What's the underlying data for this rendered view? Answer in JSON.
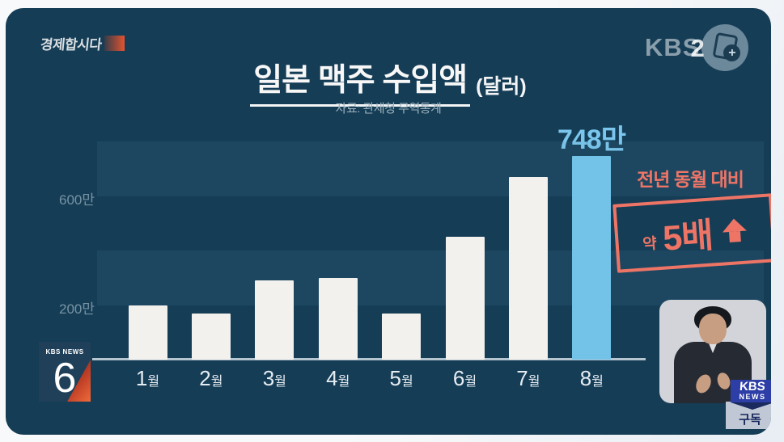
{
  "program_badge": {
    "label": "경제합시다"
  },
  "watermark": {
    "channel": "KBS",
    "number": "2"
  },
  "header": {
    "title": "일본 맥주 수입액",
    "unit_label": "(달러)",
    "source": "자료: 관세청 무역통계"
  },
  "chart_data": {
    "type": "bar",
    "title": "일본 맥주 수입액",
    "unit": "달러",
    "source": "자료: 관세청 무역통계",
    "categories": [
      "1월",
      "2월",
      "3월",
      "4월",
      "5월",
      "6월",
      "7월",
      "8월"
    ],
    "values": [
      200,
      170,
      290,
      300,
      170,
      450,
      670,
      748
    ],
    "values_unit": "만",
    "ylim": [
      0,
      800
    ],
    "yticks": [
      {
        "label": "600만",
        "value": 600
      },
      {
        "label": "200만",
        "value": 200
      }
    ],
    "grid_bands": [
      [
        200,
        400
      ],
      [
        600,
        800
      ]
    ],
    "highlight_index": 7,
    "highlight_label": "748만",
    "bar_color": "#f3f1ee",
    "highlight_color": "#73c3e9",
    "legend": "none"
  },
  "annotation": {
    "caption": "전년 동월 대비",
    "stamp_prefix": "약",
    "stamp_value": "5배",
    "stamp_direction": "up",
    "color": "#ee7566"
  },
  "news6_badge": {
    "network": "KBS NEWS",
    "show_number": "6"
  },
  "subscribe_badge": {
    "brand_top": "KBS",
    "brand_bottom": "NEWS",
    "action": "구독"
  },
  "colors": {
    "panel_bg": "#153d56",
    "grid_band": "#1e4761",
    "axis": "#d2dee5",
    "value_label": "#7ac6ec",
    "annotation_red": "#ee7566",
    "subscribe_blue": "#2d3ea7",
    "subscribe_gray": "#bfc8d4",
    "subscribe_navy": "#16265c",
    "program_block_red": "#e25330"
  }
}
